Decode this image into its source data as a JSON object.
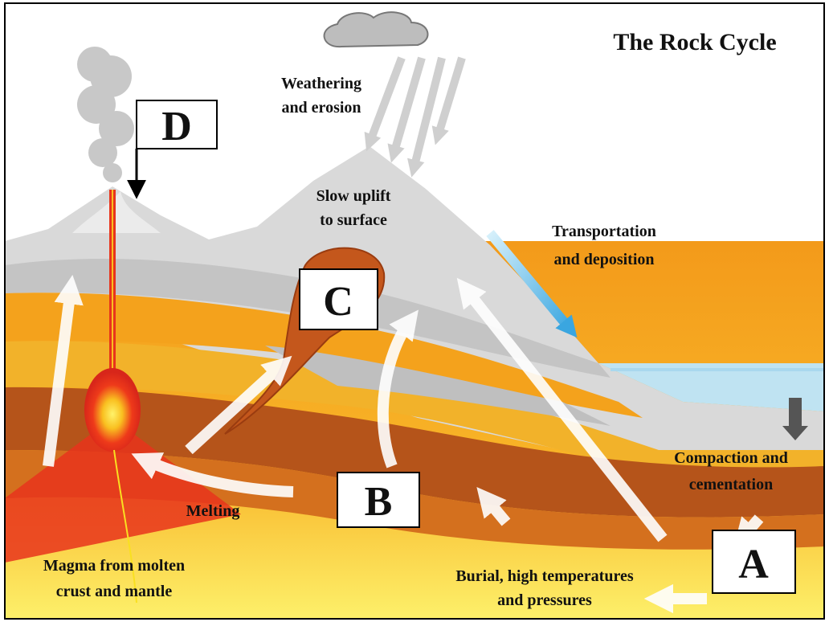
{
  "title": "The Rock Cycle",
  "labels": [
    {
      "lines": [
        "Weathering",
        "and erosion"
      ]
    },
    {
      "lines": [
        "Slow uplift",
        "to surface"
      ]
    },
    {
      "lines": [
        "Transportation",
        "and deposition"
      ]
    },
    {
      "lines": [
        "Compaction and",
        "cementation"
      ]
    },
    {
      "lines": [
        "Burial, high temperatures",
        "and pressures"
      ]
    },
    {
      "lines": [
        "Melting"
      ]
    },
    {
      "lines": [
        "Magma from molten",
        "crust and mantle"
      ]
    }
  ],
  "boxes": [
    {
      "letter": "A"
    },
    {
      "letter": "B"
    },
    {
      "letter": "C"
    },
    {
      "letter": "D"
    }
  ]
}
